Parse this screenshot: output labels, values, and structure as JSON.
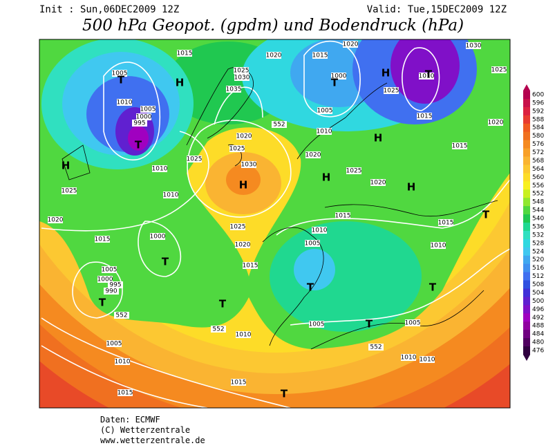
{
  "header": {
    "init": "Init : Sun,06DEC2009 12Z",
    "valid": "Valid: Tue,15DEC2009 12Z",
    "title": "500 hPa Geopot. (gpdm) und Bodendruck (hPa)"
  },
  "map": {
    "isobar_labels": [
      "1015",
      "1020",
      "1015",
      "1020",
      "1030",
      "1025",
      "1005",
      "1010",
      "1005",
      "1000",
      "995",
      "1025",
      "1030",
      "1035",
      "1000",
      "1025",
      "1010",
      "1005",
      "1015",
      "1020",
      "1010",
      "1020",
      "1025",
      "1015",
      "1020",
      "1010",
      "1025",
      "1030",
      "1025",
      "1020",
      "1025",
      "1010",
      "1020",
      "1015",
      "1015",
      "1025",
      "1010",
      "1015",
      "1000",
      "1005",
      "1020",
      "1010",
      "1015",
      "1005",
      "1000",
      "995",
      "990",
      "1005",
      "1005",
      "1010",
      "1005",
      "1010",
      "1010",
      "1010",
      "1015",
      "1015"
    ],
    "geopotential_labels": [
      "552",
      "552",
      "552",
      "552"
    ],
    "pressure_centers": [
      "H",
      "T",
      "T",
      "H",
      "T",
      "T",
      "H",
      "H",
      "H",
      "H",
      "H",
      "T",
      "T",
      "T",
      "T",
      "T",
      "T",
      "T",
      "T"
    ]
  },
  "colorbar": {
    "ticks": [
      600,
      596,
      592,
      588,
      584,
      580,
      576,
      572,
      568,
      564,
      560,
      556,
      552,
      548,
      544,
      540,
      536,
      532,
      528,
      524,
      520,
      516,
      512,
      508,
      504,
      500,
      496,
      492,
      488,
      484,
      480,
      476
    ],
    "colors": [
      "#b4004e",
      "#c8104a",
      "#dc2040",
      "#e83a30",
      "#f05a20",
      "#f07020",
      "#f58a20",
      "#f8a028",
      "#fab432",
      "#fcc832",
      "#fddc28",
      "#f8f020",
      "#c8f020",
      "#90e830",
      "#50d840",
      "#20c850",
      "#20d890",
      "#30e0c0",
      "#30d8e0",
      "#40c8f0",
      "#40a8f0",
      "#4090f0",
      "#4070f0",
      "#3050e0",
      "#4030d8",
      "#6020d0",
      "#8010c8",
      "#a000c0",
      "#9000a0",
      "#700080",
      "#500060",
      "#300040"
    ]
  },
  "footer": {
    "source": "Daten: ECMWF",
    "copyright": "(C) Wetterzentrale",
    "url": "www.wetterzentrale.de"
  }
}
